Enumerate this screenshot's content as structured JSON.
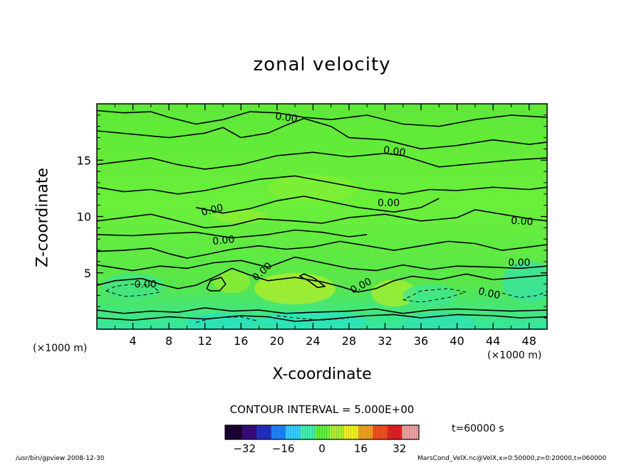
{
  "chart_data": {
    "type": "heatmap",
    "title": "zonal velocity",
    "xlabel": "X-coordinate",
    "ylabel": "Z-coordinate",
    "x_unit": "(×1000 m)",
    "xlim": [
      0,
      50
    ],
    "ylim": [
      0,
      20
    ],
    "x_ticks": [
      4,
      8,
      12,
      16,
      20,
      24,
      28,
      32,
      36,
      40,
      44,
      48
    ],
    "y_ticks": [
      5,
      10,
      15
    ],
    "contour_label": "0.00",
    "contour_interval": "CONTOUR INTERVAL = 5.000E+00",
    "colorbar": {
      "ticks": [
        -32,
        -16,
        0,
        16,
        32
      ],
      "range": [
        -40,
        40
      ],
      "colors": [
        "#1a0033",
        "#3a0a7a",
        "#2030c0",
        "#2080ff",
        "#30d0ff",
        "#40f0b0",
        "#60f040",
        "#a8f030",
        "#f0f020",
        "#f0a020",
        "#f05020",
        "#e02020",
        "#f0a0a0"
      ]
    },
    "time": "t=60000 s"
  },
  "footer": {
    "left": "/usr/bin/gpview   2008-12-30",
    "right": "MarsCond_VelX.nc@VelX,x=0:50000,z=0:20000,t=060000"
  }
}
